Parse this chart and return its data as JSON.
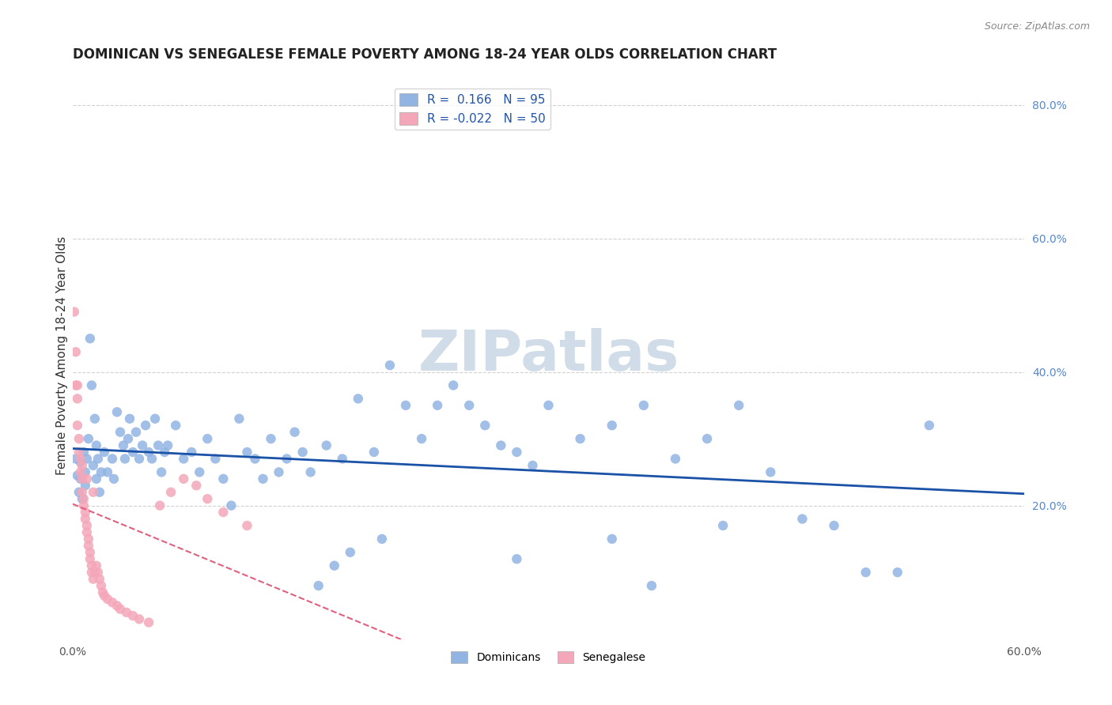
{
  "title": "DOMINICAN VS SENEGALESE FEMALE POVERTY AMONG 18-24 YEAR OLDS CORRELATION CHART",
  "source": "Source: ZipAtlas.com",
  "ylabel": "Female Poverty Among 18-24 Year Olds",
  "right_yticks": [
    "80.0%",
    "60.0%",
    "40.0%",
    "20.0%"
  ],
  "right_ytick_vals": [
    0.8,
    0.6,
    0.4,
    0.2
  ],
  "xlim": [
    0.0,
    0.6
  ],
  "ylim": [
    0.0,
    0.85
  ],
  "dominican_R": "0.166",
  "dominican_N": "95",
  "senegalese_R": "-0.022",
  "senegalese_N": "50",
  "dominican_color": "#92b4e3",
  "senegalese_color": "#f4a7b9",
  "dominican_line_color": "#1a52a8",
  "senegalese_line_color": "#e06080",
  "watermark": "ZIPatlas",
  "watermark_color": "#d0dce8",
  "background_color": "#ffffff",
  "grid_color": "#cccccc",
  "legend_label_dominicans": "Dominicans",
  "legend_label_senegalese": "Senegalese",
  "dominican_x": [
    0.002,
    0.003,
    0.004,
    0.005,
    0.005,
    0.006,
    0.007,
    0.008,
    0.008,
    0.009,
    0.01,
    0.011,
    0.012,
    0.013,
    0.014,
    0.015,
    0.015,
    0.016,
    0.017,
    0.018,
    0.02,
    0.022,
    0.025,
    0.026,
    0.028,
    0.03,
    0.032,
    0.033,
    0.035,
    0.036,
    0.038,
    0.04,
    0.042,
    0.044,
    0.046,
    0.048,
    0.05,
    0.052,
    0.054,
    0.056,
    0.058,
    0.06,
    0.065,
    0.07,
    0.075,
    0.08,
    0.085,
    0.09,
    0.095,
    0.1,
    0.105,
    0.11,
    0.115,
    0.12,
    0.125,
    0.13,
    0.135,
    0.14,
    0.145,
    0.15,
    0.16,
    0.17,
    0.18,
    0.19,
    0.2,
    0.21,
    0.22,
    0.23,
    0.24,
    0.25,
    0.26,
    0.27,
    0.28,
    0.29,
    0.3,
    0.32,
    0.34,
    0.36,
    0.38,
    0.4,
    0.42,
    0.44,
    0.46,
    0.48,
    0.5,
    0.52,
    0.54,
    0.34,
    0.28,
    0.195,
    0.175,
    0.165,
    0.155,
    0.365,
    0.41
  ],
  "dominican_y": [
    0.27,
    0.245,
    0.22,
    0.265,
    0.24,
    0.21,
    0.28,
    0.25,
    0.23,
    0.27,
    0.3,
    0.45,
    0.38,
    0.26,
    0.33,
    0.29,
    0.24,
    0.27,
    0.22,
    0.25,
    0.28,
    0.25,
    0.27,
    0.24,
    0.34,
    0.31,
    0.29,
    0.27,
    0.3,
    0.33,
    0.28,
    0.31,
    0.27,
    0.29,
    0.32,
    0.28,
    0.27,
    0.33,
    0.29,
    0.25,
    0.28,
    0.29,
    0.32,
    0.27,
    0.28,
    0.25,
    0.3,
    0.27,
    0.24,
    0.2,
    0.33,
    0.28,
    0.27,
    0.24,
    0.3,
    0.25,
    0.27,
    0.31,
    0.28,
    0.25,
    0.29,
    0.27,
    0.36,
    0.28,
    0.41,
    0.35,
    0.3,
    0.35,
    0.38,
    0.35,
    0.32,
    0.29,
    0.28,
    0.26,
    0.35,
    0.3,
    0.32,
    0.35,
    0.27,
    0.3,
    0.35,
    0.25,
    0.18,
    0.17,
    0.1,
    0.1,
    0.32,
    0.15,
    0.12,
    0.15,
    0.13,
    0.11,
    0.08,
    0.08,
    0.17
  ],
  "senegalese_x": [
    0.001,
    0.002,
    0.002,
    0.003,
    0.003,
    0.004,
    0.004,
    0.005,
    0.005,
    0.006,
    0.006,
    0.007,
    0.007,
    0.008,
    0.008,
    0.009,
    0.009,
    0.01,
    0.01,
    0.011,
    0.011,
    0.012,
    0.012,
    0.013,
    0.014,
    0.015,
    0.016,
    0.017,
    0.018,
    0.019,
    0.02,
    0.022,
    0.025,
    0.028,
    0.03,
    0.034,
    0.038,
    0.042,
    0.048,
    0.055,
    0.062,
    0.07,
    0.078,
    0.085,
    0.095,
    0.11,
    0.003,
    0.006,
    0.009,
    0.013
  ],
  "senegalese_y": [
    0.49,
    0.43,
    0.38,
    0.36,
    0.32,
    0.3,
    0.28,
    0.27,
    0.25,
    0.24,
    0.22,
    0.21,
    0.2,
    0.19,
    0.18,
    0.17,
    0.16,
    0.15,
    0.14,
    0.13,
    0.12,
    0.11,
    0.1,
    0.09,
    0.1,
    0.11,
    0.1,
    0.09,
    0.08,
    0.07,
    0.065,
    0.06,
    0.055,
    0.05,
    0.045,
    0.04,
    0.035,
    0.03,
    0.025,
    0.2,
    0.22,
    0.24,
    0.23,
    0.21,
    0.19,
    0.17,
    0.38,
    0.26,
    0.24,
    0.22
  ]
}
